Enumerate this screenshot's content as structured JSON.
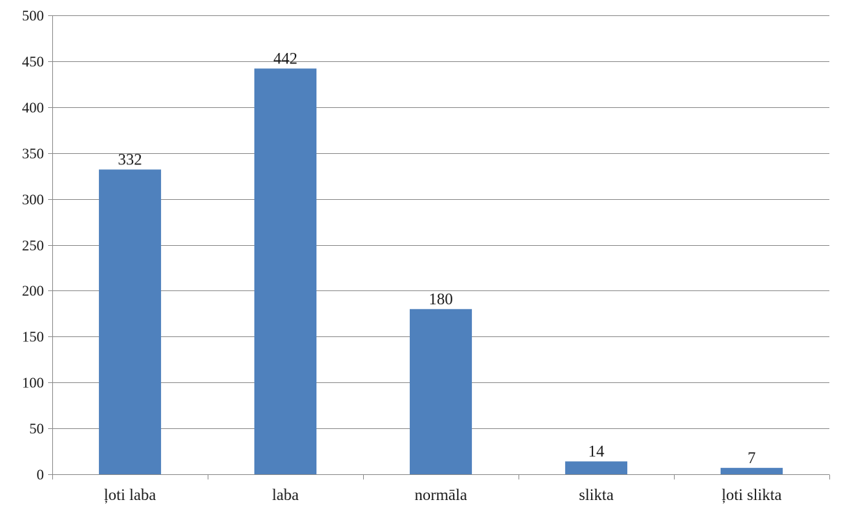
{
  "chart_data": {
    "type": "bar",
    "title": "",
    "xlabel": "",
    "ylabel": "",
    "categories": [
      "ļoti laba",
      "laba",
      "normāla",
      "slikta",
      "ļoti slikta"
    ],
    "values": [
      332,
      442,
      180,
      14,
      7
    ],
    "data_labels": [
      "332",
      "442",
      "180",
      "14",
      "7"
    ],
    "ylim": [
      0,
      500
    ],
    "yticks": [
      0,
      50,
      100,
      150,
      200,
      250,
      300,
      350,
      400,
      450,
      500
    ],
    "grid": true,
    "legend": "none",
    "colors": {
      "bar": "#4F81BD",
      "grid": "#8c8c8c",
      "text": "#1a1a1a"
    }
  }
}
